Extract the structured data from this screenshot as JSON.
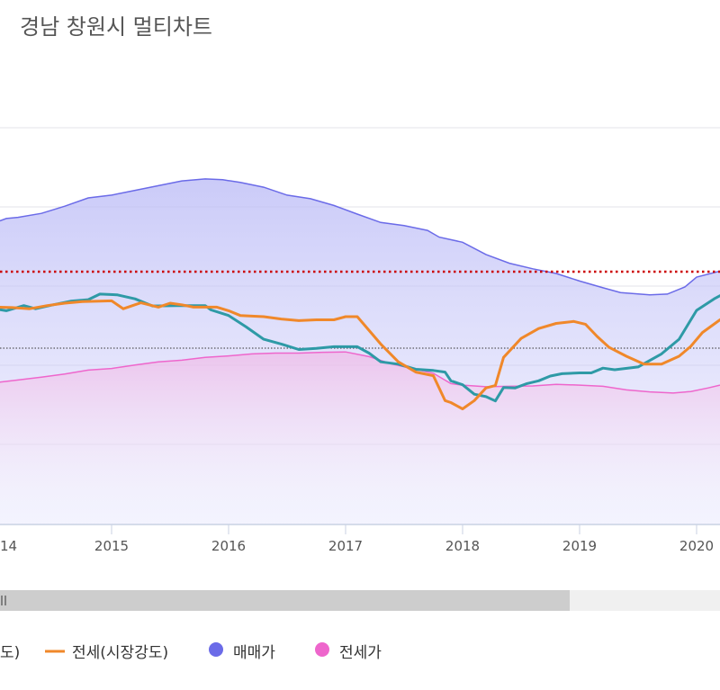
{
  "page": {
    "title": "경남 창원시 멀티차트"
  },
  "chart_data": {
    "type": "line",
    "title": "경남 창원시 멀티차트",
    "x_ticks": [
      "14",
      "2015",
      "2016",
      "2017",
      "2018",
      "2019",
      "2020"
    ],
    "grid": true,
    "legend_position": "bottom",
    "legend": [
      {
        "label": "도)",
        "marker": "line",
        "color": "#2e9aa6"
      },
      {
        "label": "전세(시장강도)",
        "marker": "line",
        "color": "#f0882a"
      },
      {
        "label": "매매가",
        "marker": "dot",
        "color": "#6b6be8"
      },
      {
        "label": "전세가",
        "marker": "dot",
        "color": "#ee66cc"
      }
    ],
    "reference_lines": [
      {
        "style": "dotted",
        "color": "#cc0000"
      },
      {
        "style": "dotted",
        "color": "#333333"
      }
    ],
    "series": [
      {
        "key": "maemae",
        "type": "area",
        "color": "#6b6be8",
        "x": [
          2014.0,
          2014.1,
          2014.2,
          2014.4,
          2014.6,
          2014.8,
          2015.0,
          2015.2,
          2015.4,
          2015.6,
          2015.8,
          2015.95,
          2016.1,
          2016.3,
          2016.5,
          2016.7,
          2016.9,
          2017.1,
          2017.3,
          2017.5,
          2017.7,
          2017.8,
          2018.0,
          2018.2,
          2018.4,
          2018.6,
          2018.8,
          2019.0,
          2019.2,
          2019.35,
          2019.6,
          2019.75,
          2019.9,
          2020.0,
          2020.2
        ],
        "values": [
          76.2,
          77.3,
          77.6,
          78.6,
          80.4,
          82.5,
          83.2,
          84.4,
          85.6,
          86.8,
          87.3,
          87.1,
          86.4,
          85.2,
          83.2,
          82.3,
          80.6,
          78.4,
          76.3,
          75.5,
          74.3,
          72.6,
          71.3,
          68.2,
          66.0,
          64.6,
          63.4,
          61.5,
          59.8,
          58.6,
          58.0,
          58.2,
          60.0,
          62.5,
          64.0
        ]
      },
      {
        "key": "jeonse",
        "type": "area",
        "color": "#ee66cc",
        "x": [
          2014.0,
          2014.2,
          2014.4,
          2014.6,
          2014.8,
          2015.0,
          2015.2,
          2015.4,
          2015.6,
          2015.8,
          2016.0,
          2016.2,
          2016.4,
          2016.6,
          2016.8,
          2017.0,
          2017.2,
          2017.4,
          2017.6,
          2017.75,
          2017.9,
          2018.0,
          2018.2,
          2018.4,
          2018.6,
          2018.8,
          2019.0,
          2019.2,
          2019.4,
          2019.6,
          2019.8,
          2019.95,
          2020.1,
          2020.2
        ],
        "values": [
          35.8,
          36.5,
          37.2,
          38.0,
          39.0,
          39.4,
          40.3,
          41.1,
          41.5,
          42.2,
          42.6,
          43.1,
          43.3,
          43.3,
          43.5,
          43.6,
          42.4,
          40.5,
          39.2,
          38.2,
          35.6,
          35.2,
          34.8,
          34.9,
          35.0,
          35.4,
          35.2,
          34.9,
          34.0,
          33.5,
          33.2,
          33.6,
          34.5,
          35.2
        ]
      },
      {
        "key": "teal_line",
        "type": "line",
        "color": "#2e9aa6",
        "x": [
          2014.0,
          2014.1,
          2014.25,
          2014.35,
          2014.5,
          2014.65,
          2014.8,
          2014.9,
          2015.05,
          2015.2,
          2015.35,
          2015.55,
          2015.7,
          2015.8,
          2015.85,
          2016.0,
          2016.15,
          2016.3,
          2016.45,
          2016.6,
          2016.75,
          2016.9,
          2017.0,
          2017.1,
          2017.2,
          2017.3,
          2017.45,
          2017.6,
          2017.75,
          2017.85,
          2017.9,
          2018.0,
          2018.1,
          2018.2,
          2018.28,
          2018.35,
          2018.45,
          2018.55,
          2018.65,
          2018.75,
          2018.85,
          2019.0,
          2019.1,
          2019.2,
          2019.3,
          2019.5,
          2019.7,
          2019.85,
          2020.0,
          2020.15,
          2020.2
        ],
        "values": [
          54.5,
          54.0,
          55.3,
          54.5,
          55.5,
          56.4,
          56.8,
          58.2,
          58.0,
          57.0,
          55.2,
          55.3,
          55.3,
          55.3,
          54.2,
          52.8,
          49.9,
          46.8,
          45.6,
          44.2,
          44.5,
          44.9,
          44.9,
          44.9,
          43.3,
          41.1,
          40.5,
          39.2,
          38.9,
          38.5,
          36.3,
          35.3,
          32.9,
          32.3,
          31.2,
          34.6,
          34.5,
          35.6,
          36.3,
          37.5,
          38.1,
          38.3,
          38.3,
          39.5,
          39.1,
          39.8,
          43.1,
          46.8,
          54.1,
          57.0,
          57.8
        ]
      },
      {
        "key": "orange_line",
        "type": "line",
        "color": "#f0882a",
        "x": [
          2014.0,
          2014.15,
          2014.3,
          2014.45,
          2014.6,
          2014.75,
          2014.9,
          2015.0,
          2015.1,
          2015.25,
          2015.4,
          2015.5,
          2015.6,
          2015.7,
          2015.8,
          2015.9,
          2016.0,
          2016.1,
          2016.3,
          2016.45,
          2016.6,
          2016.75,
          2016.9,
          2017.0,
          2017.1,
          2017.3,
          2017.45,
          2017.6,
          2017.75,
          2017.85,
          2017.9,
          2018.0,
          2018.1,
          2018.2,
          2018.28,
          2018.35,
          2018.5,
          2018.65,
          2018.8,
          2018.95,
          2019.05,
          2019.15,
          2019.25,
          2019.4,
          2019.55,
          2019.7,
          2019.85,
          2019.95,
          2020.05,
          2020.2
        ],
        "values": [
          54.9,
          54.8,
          54.5,
          55.3,
          55.9,
          56.3,
          56.4,
          56.5,
          54.5,
          56.0,
          54.9,
          55.9,
          55.5,
          54.9,
          54.9,
          54.9,
          54.0,
          52.8,
          52.5,
          51.9,
          51.5,
          51.7,
          51.7,
          52.5,
          52.5,
          45.6,
          41.1,
          38.5,
          37.6,
          31.3,
          30.8,
          29.2,
          31.3,
          34.5,
          35.1,
          42.2,
          47.0,
          49.5,
          50.8,
          51.3,
          50.6,
          47.5,
          44.8,
          42.5,
          40.5,
          40.5,
          42.5,
          45.0,
          48.5,
          51.7
        ]
      }
    ]
  }
}
